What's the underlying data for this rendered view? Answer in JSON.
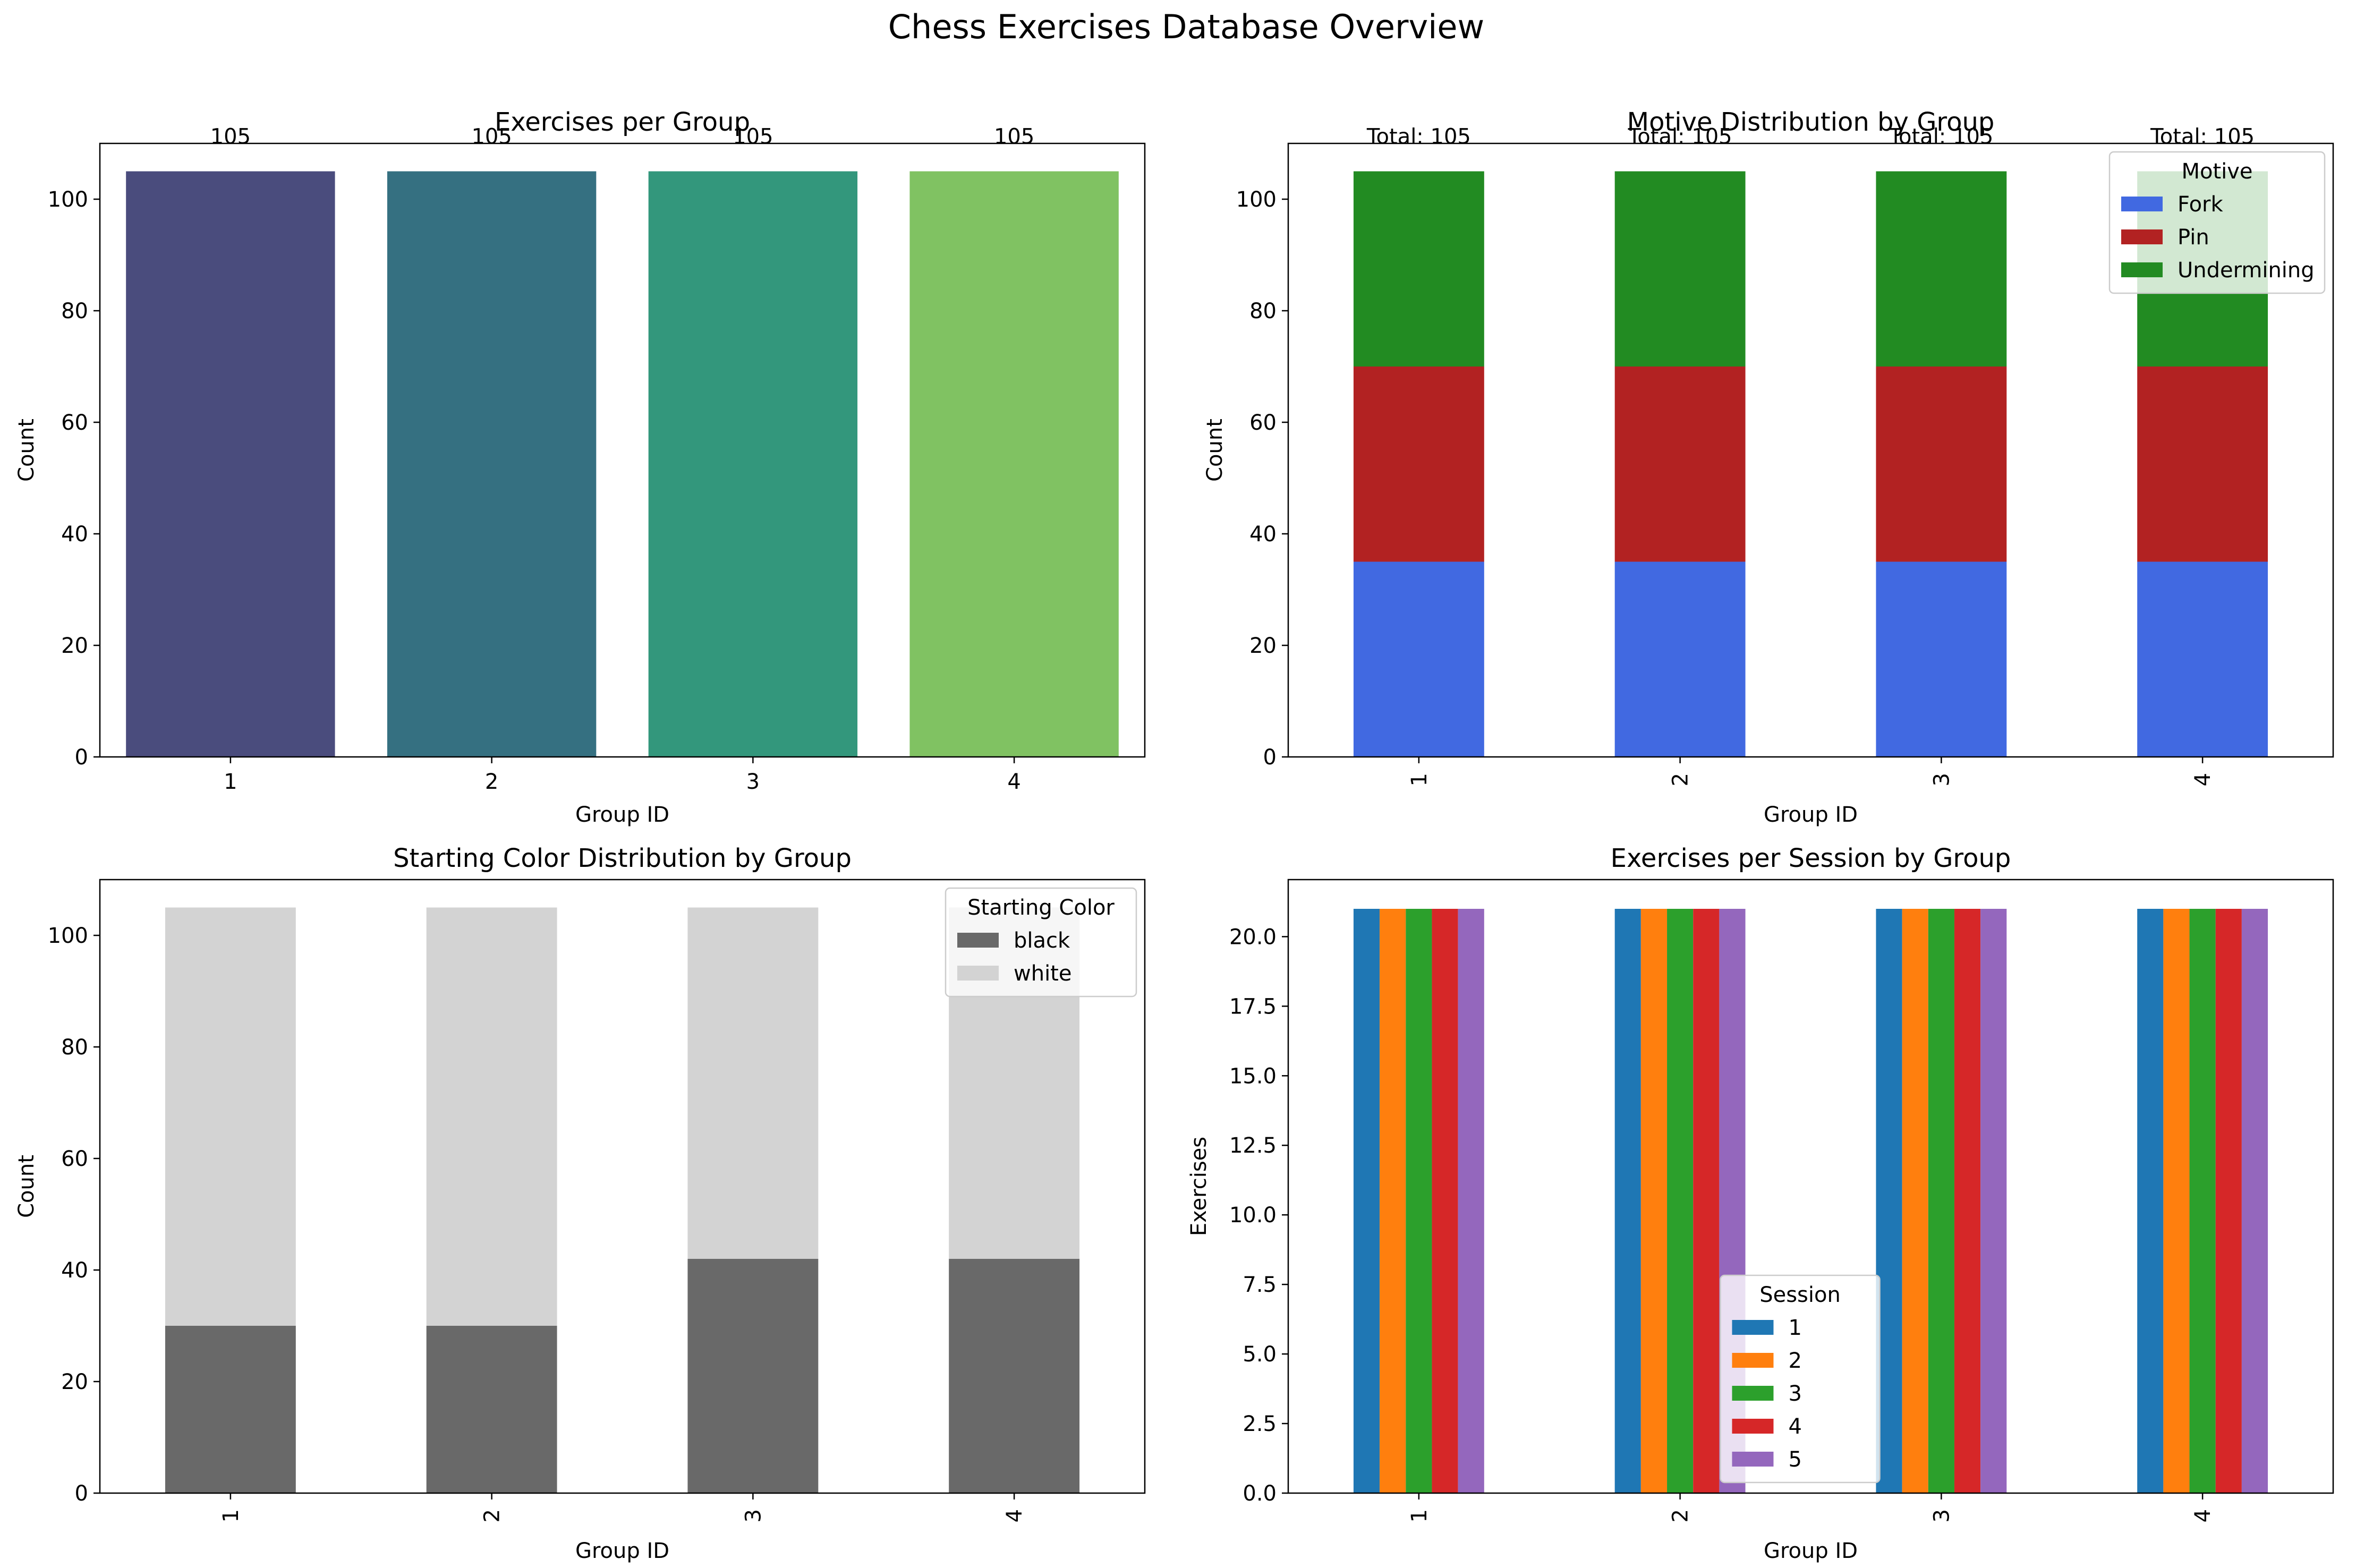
{
  "figure": {
    "title": "Chess Exercises Database Overview"
  },
  "chart_data": [
    {
      "type": "bar",
      "title": "Exercises per Group",
      "xlabel": "Group ID",
      "ylabel": "Count",
      "categories": [
        "1",
        "2",
        "3",
        "4"
      ],
      "values": [
        105,
        105,
        105,
        105
      ],
      "colors": [
        "#4a4c7d",
        "#357081",
        "#33977c",
        "#80c262"
      ],
      "data_labels": [
        "105",
        "105",
        "105",
        "105"
      ],
      "ylim": [
        0,
        110
      ],
      "yticks": [
        0,
        20,
        40,
        60,
        80,
        100
      ],
      "xtick_rotation": 0,
      "legend": null,
      "grid": false
    },
    {
      "type": "bar",
      "stacked": true,
      "title": "Motive Distribution by Group",
      "xlabel": "Group ID",
      "ylabel": "Count",
      "categories": [
        "1",
        "2",
        "3",
        "4"
      ],
      "series": [
        {
          "name": "Fork",
          "values": [
            35,
            35,
            35,
            35
          ],
          "color": "#4169e1"
        },
        {
          "name": "Pin",
          "values": [
            35,
            35,
            35,
            35
          ],
          "color": "#b22222"
        },
        {
          "name": "Undermining",
          "values": [
            35,
            35,
            35,
            35
          ],
          "color": "#228b22"
        }
      ],
      "data_labels": [
        "Total: 105",
        "Total: 105",
        "Total: 105",
        "Total: 105"
      ],
      "ylim": [
        0,
        110
      ],
      "yticks": [
        0,
        20,
        40,
        60,
        80,
        100
      ],
      "xtick_rotation": 90,
      "legend": {
        "title": "Motive",
        "placement": "top-right"
      },
      "grid": false
    },
    {
      "type": "bar",
      "stacked": true,
      "title": "Starting Color Distribution by Group",
      "xlabel": "Group ID",
      "ylabel": "Count",
      "categories": [
        "1",
        "2",
        "3",
        "4"
      ],
      "series": [
        {
          "name": "black",
          "values": [
            30,
            30,
            42,
            42
          ],
          "color": "#696969"
        },
        {
          "name": "white",
          "values": [
            75,
            75,
            63,
            63
          ],
          "color": "#d3d3d3"
        }
      ],
      "ylim": [
        0,
        110
      ],
      "yticks": [
        0,
        20,
        40,
        60,
        80,
        100
      ],
      "xtick_rotation": 90,
      "legend": {
        "title": "Starting Color",
        "placement": "top-right"
      },
      "grid": false
    },
    {
      "type": "bar",
      "grouped": true,
      "title": "Exercises per Session by Group",
      "xlabel": "Group ID",
      "ylabel": "Exercises",
      "categories": [
        "1",
        "2",
        "3",
        "4"
      ],
      "series": [
        {
          "name": "1",
          "values": [
            21,
            21,
            21,
            21
          ],
          "color": "#1f77b4"
        },
        {
          "name": "2",
          "values": [
            21,
            21,
            21,
            21
          ],
          "color": "#ff7f0e"
        },
        {
          "name": "3",
          "values": [
            21,
            21,
            21,
            21
          ],
          "color": "#2ca02c"
        },
        {
          "name": "4",
          "values": [
            21,
            21,
            21,
            21
          ],
          "color": "#d62728"
        },
        {
          "name": "5",
          "values": [
            21,
            21,
            21,
            21
          ],
          "color": "#9467bd"
        }
      ],
      "ylim": [
        0,
        22.05
      ],
      "yticks": [
        0.0,
        2.5,
        5.0,
        7.5,
        10.0,
        12.5,
        15.0,
        17.5,
        20.0
      ],
      "ytick_decimals": 1,
      "xtick_rotation": 90,
      "legend": {
        "title": "Session",
        "placement": "bottom-center"
      },
      "grid": false
    }
  ]
}
